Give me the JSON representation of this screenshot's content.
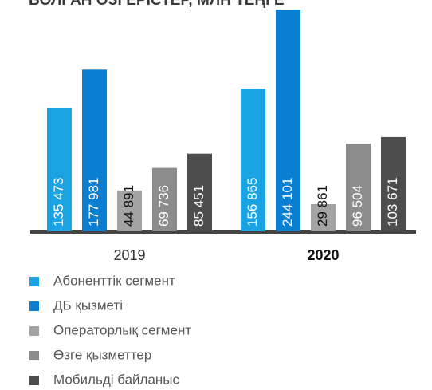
{
  "chart_data": {
    "type": "bar",
    "title": "БОЛҒАН ӨЗГЕРІСТЕР, МЛН ТЕҢГЕ",
    "categories": [
      "2019",
      "2020"
    ],
    "series": [
      {
        "name": "Абоненттік сегмент",
        "color": "#1aa3e3",
        "values": [
          135473,
          156865
        ],
        "value_labels": [
          "135 473",
          "156 865"
        ]
      },
      {
        "name": "ДБ қызметі",
        "color": "#0a7fd1",
        "values": [
          177981,
          244101
        ],
        "value_labels": [
          "177 981",
          "244 101"
        ]
      },
      {
        "name": "Операторлық сегмент",
        "color": "#a3a3a3",
        "values": [
          44891,
          29861
        ],
        "value_labels": [
          "44 891",
          "29 861"
        ]
      },
      {
        "name": "Өзге қызметтер",
        "color": "#8c8c8c",
        "values": [
          69736,
          96504
        ],
        "value_labels": [
          "69 736",
          "96 504"
        ]
      },
      {
        "name": "Мобильді байланыс",
        "color": "#4d4d4d",
        "values": [
          85451,
          103671
        ],
        "value_labels": [
          "85 451",
          "103 671"
        ]
      }
    ]
  }
}
